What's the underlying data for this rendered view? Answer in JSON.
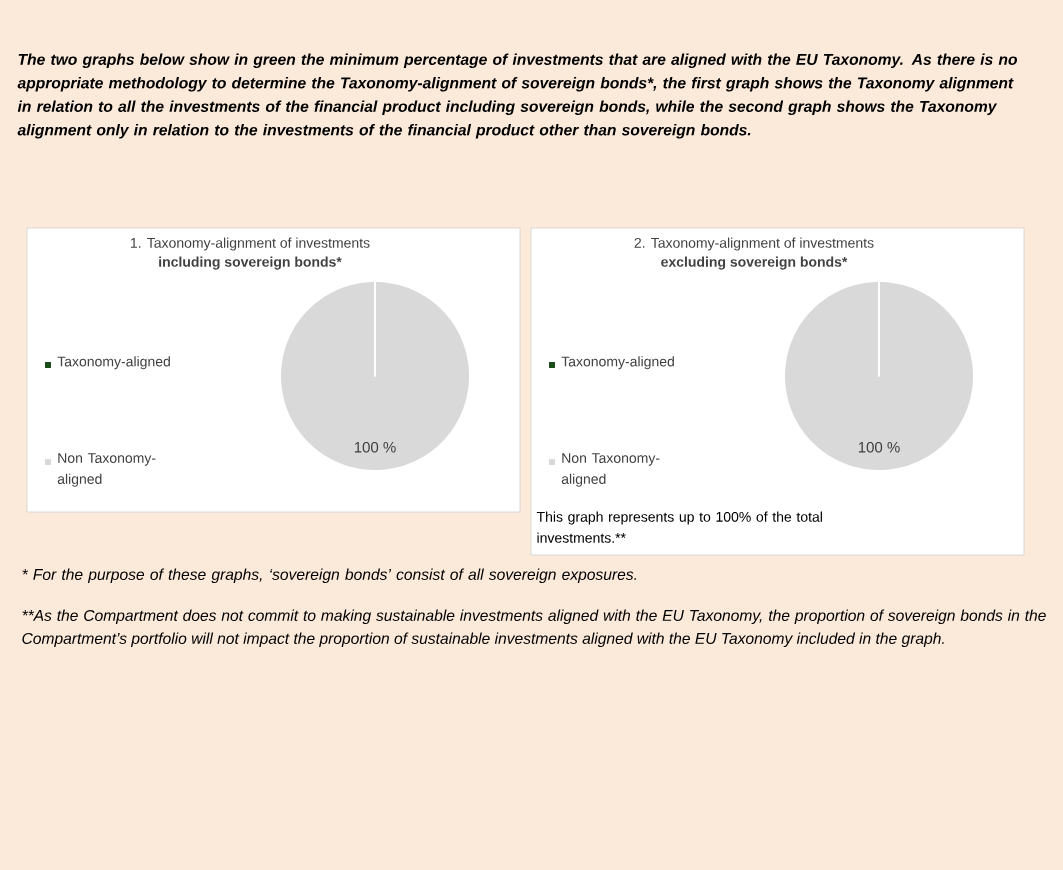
{
  "chart_data": [
    {
      "type": "pie",
      "title": "1. Taxonomy-alignment of investments",
      "subtitle": "including sovereign bonds*",
      "categories": [
        "Taxonomy-aligned",
        "Non Taxonomy-aligned"
      ],
      "values": [
        0,
        100
      ],
      "colors": [
        "#1b4d1b",
        "#d9d9d9"
      ],
      "value_labels": [
        null,
        "100 %"
      ],
      "legend": "left",
      "annotations": [
        "The two graphs below show in green the minimum percentage of investments that are aligned with the EU Taxonomy. As there is no appropriate methodology to determine the Taxonomy-alignment of sovereign bonds*, the first graph shows the Taxonomy alignment in relation to all the investments of the financial product including sovereign bonds, while the second graph shows the Taxonomy alignment only in relation to the investments of the financial product other than sovereign bonds."
      ]
    },
    {
      "type": "pie",
      "title": "2. Taxonomy-alignment of investments",
      "subtitle": "excluding sovereign bonds*",
      "categories": [
        "Taxonomy-aligned",
        "Non Taxonomy-aligned"
      ],
      "values": [
        0,
        100
      ],
      "colors": [
        "#1b4d1b",
        "#d9d9d9"
      ],
      "value_labels": [
        null,
        "100 %"
      ],
      "legend": "left",
      "annotations": [
        "This graph represents up to 100% of the total investments.**",
        "* For the purpose of these graphs, ‘sovereign bonds’ consist of all sovereign exposures.",
        "**As the Compartment does not commit to making sustainable investments aligned with the EU Taxonomy, the proportion of sovereign bonds in the Compartment’s portfolio will not impact the proportion of sustainable investments aligned with the EU Taxonomy included in the graph."
      ]
    }
  ]
}
